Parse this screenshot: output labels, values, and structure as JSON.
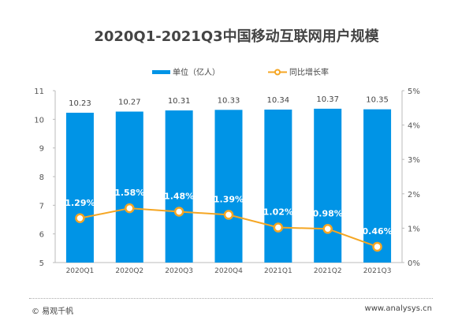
{
  "chart_data": {
    "type": "bar+line",
    "title": "2020Q1-2021Q3中国移动互联网用户规模",
    "categories": [
      "2020Q1",
      "2020Q2",
      "2020Q3",
      "2020Q4",
      "2021Q1",
      "2021Q2",
      "2021Q3"
    ],
    "series": [
      {
        "name": "单位（亿人）",
        "type": "bar",
        "axis": "left",
        "color": "#0094E6",
        "values": [
          10.23,
          10.27,
          10.31,
          10.33,
          10.34,
          10.37,
          10.35
        ],
        "labels": [
          "10.23",
          "10.27",
          "10.31",
          "10.33",
          "10.34",
          "10.37",
          "10.35"
        ]
      },
      {
        "name": "同比增长率",
        "type": "line",
        "axis": "right",
        "color": "#F5A623",
        "values": [
          1.29,
          1.58,
          1.48,
          1.39,
          1.02,
          0.98,
          0.46
        ],
        "labels": [
          "1.29%",
          "1.58%",
          "1.48%",
          "1.39%",
          "1.02%",
          "0.98%",
          "0.46%"
        ]
      }
    ],
    "y_left": {
      "range": [
        5,
        11
      ],
      "ticks": [
        "5",
        "6",
        "7",
        "8",
        "9",
        "10",
        "11"
      ]
    },
    "y_right": {
      "range": [
        0,
        5
      ],
      "ticks": [
        "0%",
        "1%",
        "2%",
        "3%",
        "4%",
        "5%"
      ]
    },
    "grid": false,
    "legend_placement": "top-center"
  },
  "footer": {
    "source": "© 易观千帆",
    "url": "www.analysys.cn"
  }
}
